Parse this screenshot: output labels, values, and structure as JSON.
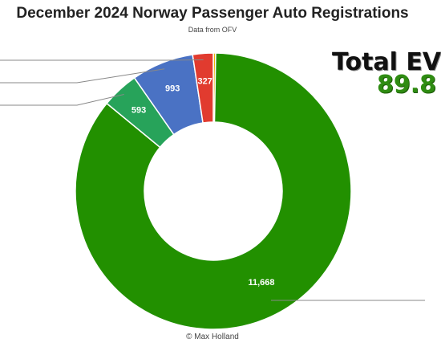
{
  "title": "December 2024 Norway Passenger Auto Registrations",
  "subtitle": "Data from OFV",
  "ev_share": {
    "label": "Total EV",
    "value": "89.8"
  },
  "credit": "© Max Holland",
  "chart_data": {
    "type": "pie",
    "donut": true,
    "start_angle_deg": 0,
    "slices": [
      {
        "value": 38,
        "label": "",
        "color": "#f0b400"
      },
      {
        "value": 11668,
        "label": "11,668",
        "color": "#229000"
      },
      {
        "value": 593,
        "label": "593",
        "color": "#27a35a"
      },
      {
        "value": 993,
        "label": "993",
        "color": "#4a72c4"
      },
      {
        "value": 327,
        "label": "327",
        "color": "#e13b2f"
      }
    ]
  }
}
